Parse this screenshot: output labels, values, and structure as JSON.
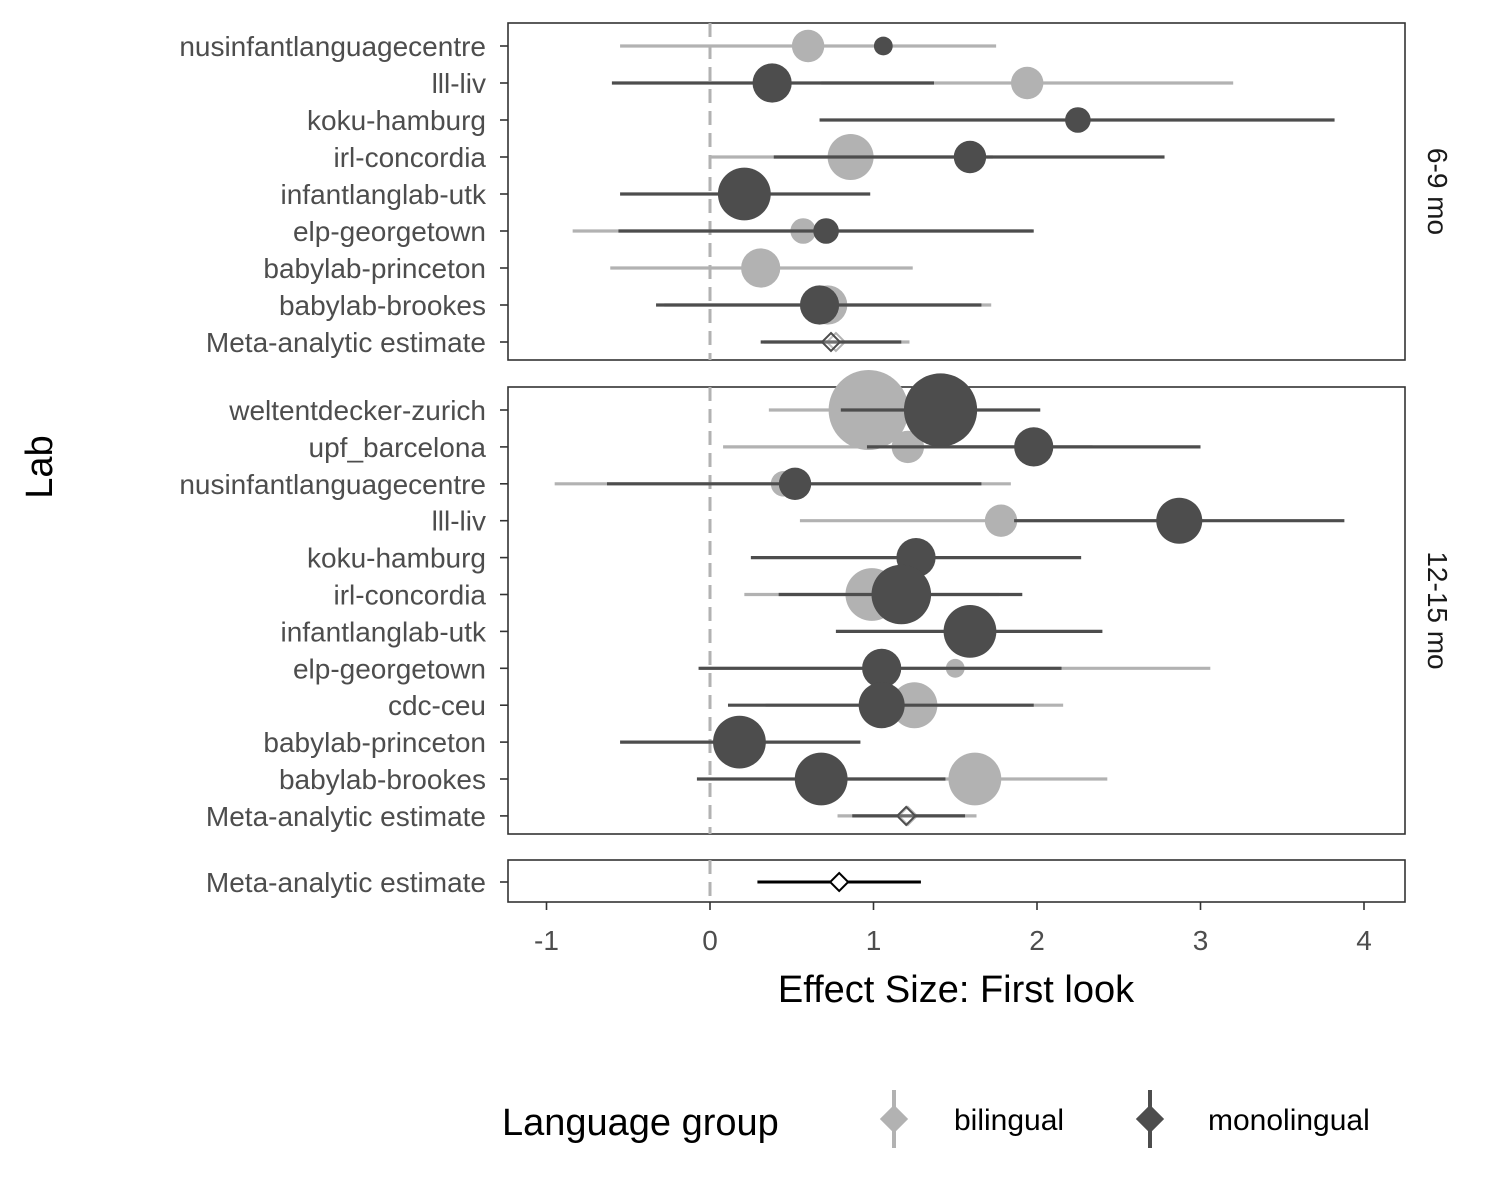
{
  "chart_data": {
    "type": "forest",
    "xlabel": "Effect Size: First look",
    "ylabel": "Lab",
    "xlim": [
      -1.25,
      4.25
    ],
    "xticks": [
      -1,
      0,
      1,
      2,
      3,
      4
    ],
    "xtick_labels": [
      "-1",
      "0",
      "1",
      "2",
      "3",
      "4"
    ],
    "reference_line": 0,
    "colors": {
      "bilingual": "#b2b2b2",
      "monolingual": "#4d4d4d",
      "overall": "#000000"
    },
    "legend": {
      "title": "Language group",
      "position": "bottom",
      "items": [
        {
          "label": "bilingual",
          "color": "#b2b2b2"
        },
        {
          "label": "monolingual",
          "color": "#4d4d4d"
        }
      ]
    },
    "panels": [
      {
        "strip": "6-9 mo",
        "labs": [
          "nusinfantlanguagecentre",
          "lll-liv",
          "koku-hamburg",
          "irl-concordia",
          "infantlanglab-utk",
          "elp-georgetown",
          "babylab-princeton",
          "babylab-brookes",
          "Meta-analytic estimate"
        ],
        "bilingual": [
          {
            "lab": "nusinfantlanguagecentre",
            "est": 0.6,
            "lo": -0.55,
            "hi": 1.75,
            "n": 3
          },
          {
            "lab": "lll-liv",
            "est": 1.94,
            "lo": 0.68,
            "hi": 3.2,
            "n": 3
          },
          {
            "lab": "irl-concordia",
            "est": 0.86,
            "lo": 0.0,
            "hi": 1.73,
            "n": 5
          },
          {
            "lab": "elp-georgetown",
            "est": 0.57,
            "lo": -0.84,
            "hi": 1.97,
            "n": 2
          },
          {
            "lab": "babylab-princeton",
            "est": 0.31,
            "lo": -0.61,
            "hi": 1.24,
            "n": 4
          },
          {
            "lab": "babylab-brookes",
            "est": 0.72,
            "lo": -0.28,
            "hi": 1.72,
            "n": 4
          },
          {
            "lab": "Meta-analytic estimate",
            "est": 0.77,
            "lo": 0.33,
            "hi": 1.22,
            "meta": true
          }
        ],
        "monolingual": [
          {
            "lab": "nusinfantlanguagecentre",
            "est": 1.06,
            "lo": 1.06,
            "hi": 1.06,
            "n": 1
          },
          {
            "lab": "lll-liv",
            "est": 0.38,
            "lo": -0.6,
            "hi": 1.37,
            "n": 4
          },
          {
            "lab": "koku-hamburg",
            "est": 2.25,
            "lo": 0.67,
            "hi": 3.82,
            "n": 2
          },
          {
            "lab": "irl-concordia",
            "est": 1.59,
            "lo": 0.39,
            "hi": 2.78,
            "n": 3
          },
          {
            "lab": "infantlanglab-utk",
            "est": 0.21,
            "lo": -0.55,
            "hi": 0.98,
            "n": 6
          },
          {
            "lab": "elp-georgetown",
            "est": 0.71,
            "lo": -0.56,
            "hi": 1.98,
            "n": 2
          },
          {
            "lab": "babylab-brookes",
            "est": 0.67,
            "lo": -0.33,
            "hi": 1.66,
            "n": 4
          },
          {
            "lab": "Meta-analytic estimate",
            "est": 0.74,
            "lo": 0.31,
            "hi": 1.17,
            "meta": true
          }
        ]
      },
      {
        "strip": "12-15 mo",
        "labs": [
          "weltentdecker-zurich",
          "upf_barcelona",
          "nusinfantlanguagecentre",
          "lll-liv",
          "koku-hamburg",
          "irl-concordia",
          "infantlanglab-utk",
          "elp-georgetown",
          "cdc-ceu",
          "babylab-princeton",
          "babylab-brookes",
          "Meta-analytic estimate"
        ],
        "bilingual": [
          {
            "lab": "weltentdecker-zurich",
            "est": 0.97,
            "lo": 0.36,
            "hi": 1.55,
            "n": 10
          },
          {
            "lab": "upf_barcelona",
            "est": 1.21,
            "lo": 0.08,
            "hi": 2.34,
            "n": 3
          },
          {
            "lab": "nusinfantlanguagecentre",
            "est": 0.45,
            "lo": -0.95,
            "hi": 1.84,
            "n": 2
          },
          {
            "lab": "lll-liv",
            "est": 1.78,
            "lo": 0.55,
            "hi": 3.02,
            "n": 3
          },
          {
            "lab": "irl-concordia",
            "est": 0.99,
            "lo": 0.21,
            "hi": 1.77,
            "n": 6
          },
          {
            "lab": "elp-georgetown",
            "est": 1.5,
            "lo": -0.06,
            "hi": 3.06,
            "n": 1
          },
          {
            "lab": "cdc-ceu",
            "est": 1.25,
            "lo": 0.34,
            "hi": 2.16,
            "n": 5
          },
          {
            "lab": "babylab-brookes",
            "est": 1.62,
            "lo": 0.81,
            "hi": 2.43,
            "n": 6
          },
          {
            "lab": "Meta-analytic estimate",
            "est": 1.21,
            "lo": 0.78,
            "hi": 1.63,
            "meta": true
          }
        ],
        "monolingual": [
          {
            "lab": "weltentdecker-zurich",
            "est": 1.41,
            "lo": 0.8,
            "hi": 2.02,
            "n": 9
          },
          {
            "lab": "upf_barcelona",
            "est": 1.98,
            "lo": 0.96,
            "hi": 3.0,
            "n": 4
          },
          {
            "lab": "nusinfantlanguagecentre",
            "est": 0.52,
            "lo": -0.63,
            "hi": 1.66,
            "n": 3
          },
          {
            "lab": "lll-liv",
            "est": 2.87,
            "lo": 1.86,
            "hi": 3.88,
            "n": 5
          },
          {
            "lab": "koku-hamburg",
            "est": 1.26,
            "lo": 0.25,
            "hi": 2.27,
            "n": 4
          },
          {
            "lab": "irl-concordia",
            "est": 1.17,
            "lo": 0.42,
            "hi": 1.91,
            "n": 7
          },
          {
            "lab": "infantlanglab-utk",
            "est": 1.59,
            "lo": 0.77,
            "hi": 2.4,
            "n": 6
          },
          {
            "lab": "elp-georgetown",
            "est": 1.05,
            "lo": -0.07,
            "hi": 2.15,
            "n": 4
          },
          {
            "lab": "cdc-ceu",
            "est": 1.05,
            "lo": 0.11,
            "hi": 1.98,
            "n": 5
          },
          {
            "lab": "babylab-princeton",
            "est": 0.18,
            "lo": -0.55,
            "hi": 0.92,
            "n": 6
          },
          {
            "lab": "babylab-brookes",
            "est": 0.68,
            "lo": -0.08,
            "hi": 1.44,
            "n": 6
          },
          {
            "lab": "Meta-analytic estimate",
            "est": 1.2,
            "lo": 0.87,
            "hi": 1.56,
            "meta": true
          }
        ]
      },
      {
        "strip": "",
        "labs": [
          "Meta-analytic estimate"
        ],
        "overall": [
          {
            "lab": "Meta-analytic estimate",
            "est": 0.79,
            "lo": 0.29,
            "hi": 1.29,
            "meta": true
          }
        ]
      }
    ]
  }
}
